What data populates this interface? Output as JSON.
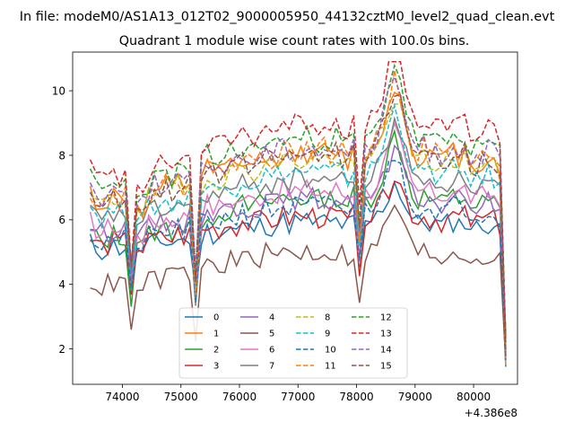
{
  "suptitle": "In file: modeM0/AS1A13_012T02_9000005950_44132cztM0_level2_quad_clean.evt",
  "chart_data": {
    "type": "line",
    "title": "Quadrant 1 module wise count rates with 100.0s bins.",
    "xlabel": "",
    "ylabel": "",
    "x_offset_label": "+4.386e8",
    "xlim": [
      73150,
      80750
    ],
    "ylim": [
      0.9,
      11.2
    ],
    "xticks": [
      74000,
      75000,
      76000,
      77000,
      78000,
      79000,
      80000
    ],
    "xtick_labels": [
      "74000",
      "75000",
      "76000",
      "77000",
      "78000",
      "79000",
      "80000"
    ],
    "yticks": [
      2,
      4,
      6,
      8,
      10
    ],
    "ytick_labels": [
      "2",
      "4",
      "6",
      "8",
      "10"
    ],
    "x_start": 73450,
    "x_step": 100,
    "legend": {
      "placement": "lower-center",
      "columns": 4
    },
    "base_profile": [
      6.0,
      5.8,
      5.7,
      5.8,
      5.9,
      5.8,
      5.9,
      4.4,
      5.8,
      5.6,
      5.9,
      6.0,
      6.0,
      6.1,
      6.0,
      6.2,
      6.1,
      6.2,
      4.1,
      6.3,
      6.5,
      6.4,
      6.4,
      6.5,
      6.6,
      6.5,
      6.7,
      6.6,
      6.6,
      6.7,
      6.8,
      6.7,
      6.8,
      6.9,
      6.8,
      6.9,
      6.8,
      6.9,
      6.9,
      6.8,
      6.9,
      6.8,
      6.9,
      6.8,
      6.7,
      6.9,
      5.0,
      6.8,
      6.9,
      7.1,
      7.5,
      8.0,
      8.5,
      8.1,
      7.5,
      7.0,
      6.8,
      6.9,
      6.8,
      6.8,
      6.7,
      6.8,
      6.9,
      6.8,
      6.9,
      6.7,
      6.6,
      6.7,
      6.8,
      6.7,
      6.5,
      2.0
    ],
    "series": [
      {
        "name": "0",
        "color": "#1f77b4",
        "dashed": false,
        "offset": -0.85,
        "amp": 0.75,
        "seed": 11
      },
      {
        "name": "1",
        "color": "#ff7f0e",
        "dashed": false,
        "offset": 1.05,
        "amp": 1.35,
        "seed": 12
      },
      {
        "name": "2",
        "color": "#2ca02c",
        "dashed": false,
        "offset": -0.25,
        "amp": 1.2,
        "seed": 13
      },
      {
        "name": "3",
        "color": "#d62728",
        "dashed": false,
        "offset": -0.7,
        "amp": 0.8,
        "seed": 14
      },
      {
        "name": "4",
        "color": "#9467bd",
        "dashed": false,
        "offset": -0.2,
        "amp": 0.9,
        "seed": 15
      },
      {
        "name": "5",
        "color": "#8c564b",
        "dashed": false,
        "offset": -1.85,
        "amp": 0.95,
        "seed": 16
      },
      {
        "name": "6",
        "color": "#e377c2",
        "dashed": false,
        "offset": 0.0,
        "amp": 1.1,
        "seed": 17
      },
      {
        "name": "7",
        "color": "#7f7f7f",
        "dashed": false,
        "offset": 0.35,
        "amp": 1.15,
        "seed": 18
      },
      {
        "name": "8",
        "color": "#bcbd22",
        "dashed": true,
        "offset": 0.9,
        "amp": 1.25,
        "seed": 19
      },
      {
        "name": "9",
        "color": "#17becf",
        "dashed": true,
        "offset": 0.55,
        "amp": 1.2,
        "seed": 20
      },
      {
        "name": "10",
        "color": "#1f77b4",
        "dashed": true,
        "offset": -0.45,
        "amp": 1.0,
        "seed": 21
      },
      {
        "name": "11",
        "color": "#ff7f0e",
        "dashed": true,
        "offset": 1.15,
        "amp": 1.4,
        "seed": 22
      },
      {
        "name": "12",
        "color": "#2ca02c",
        "dashed": true,
        "offset": 1.5,
        "amp": 1.45,
        "seed": 23
      },
      {
        "name": "13",
        "color": "#d62728",
        "dashed": true,
        "offset": 1.95,
        "amp": 1.55,
        "seed": 24
      },
      {
        "name": "14",
        "color": "#9467bd",
        "dashed": true,
        "offset": 1.25,
        "amp": 1.35,
        "seed": 25
      },
      {
        "name": "15",
        "color": "#8c564b",
        "dashed": true,
        "offset": 1.05,
        "amp": 1.3,
        "seed": 26
      }
    ]
  }
}
